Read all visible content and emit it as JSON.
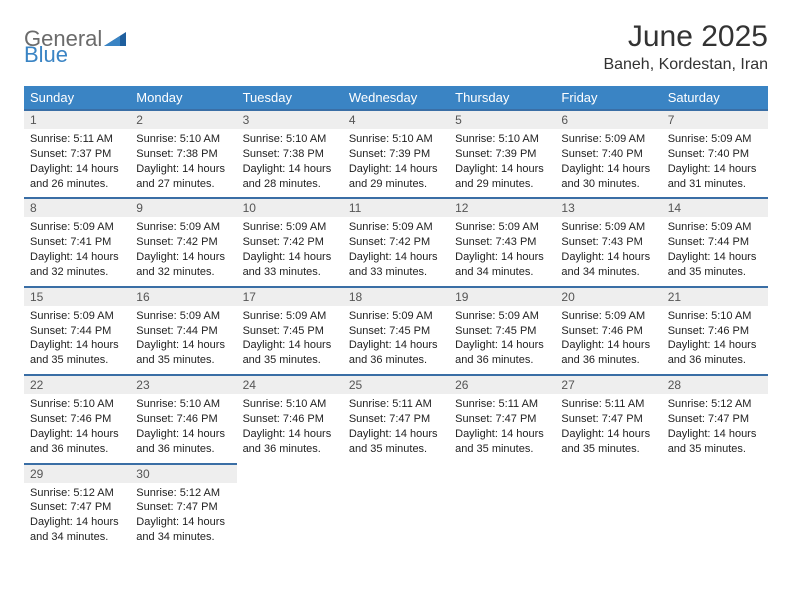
{
  "logo": {
    "text1": "General",
    "text2": "Blue"
  },
  "title": "June 2025",
  "location": "Baneh, Kordestan, Iran",
  "colors": {
    "header_bg": "#3a84c4",
    "header_text": "#ffffff",
    "daynum_bg": "#eeeeee",
    "daynum_border": "#3a6ea5",
    "body_text": "#222222",
    "title_text": "#333333",
    "logo_gray": "#6b6b6b",
    "logo_blue": "#3a84c4"
  },
  "typography": {
    "title_fontsize": 30,
    "location_fontsize": 16,
    "header_fontsize": 13,
    "daynum_fontsize": 12,
    "body_fontsize": 11
  },
  "weekdays": [
    "Sunday",
    "Monday",
    "Tuesday",
    "Wednesday",
    "Thursday",
    "Friday",
    "Saturday"
  ],
  "days": [
    {
      "n": 1,
      "sunrise": "5:11 AM",
      "sunset": "7:37 PM",
      "daylight": "14 hours and 26 minutes."
    },
    {
      "n": 2,
      "sunrise": "5:10 AM",
      "sunset": "7:38 PM",
      "daylight": "14 hours and 27 minutes."
    },
    {
      "n": 3,
      "sunrise": "5:10 AM",
      "sunset": "7:38 PM",
      "daylight": "14 hours and 28 minutes."
    },
    {
      "n": 4,
      "sunrise": "5:10 AM",
      "sunset": "7:39 PM",
      "daylight": "14 hours and 29 minutes."
    },
    {
      "n": 5,
      "sunrise": "5:10 AM",
      "sunset": "7:39 PM",
      "daylight": "14 hours and 29 minutes."
    },
    {
      "n": 6,
      "sunrise": "5:09 AM",
      "sunset": "7:40 PM",
      "daylight": "14 hours and 30 minutes."
    },
    {
      "n": 7,
      "sunrise": "5:09 AM",
      "sunset": "7:40 PM",
      "daylight": "14 hours and 31 minutes."
    },
    {
      "n": 8,
      "sunrise": "5:09 AM",
      "sunset": "7:41 PM",
      "daylight": "14 hours and 32 minutes."
    },
    {
      "n": 9,
      "sunrise": "5:09 AM",
      "sunset": "7:42 PM",
      "daylight": "14 hours and 32 minutes."
    },
    {
      "n": 10,
      "sunrise": "5:09 AM",
      "sunset": "7:42 PM",
      "daylight": "14 hours and 33 minutes."
    },
    {
      "n": 11,
      "sunrise": "5:09 AM",
      "sunset": "7:42 PM",
      "daylight": "14 hours and 33 minutes."
    },
    {
      "n": 12,
      "sunrise": "5:09 AM",
      "sunset": "7:43 PM",
      "daylight": "14 hours and 34 minutes."
    },
    {
      "n": 13,
      "sunrise": "5:09 AM",
      "sunset": "7:43 PM",
      "daylight": "14 hours and 34 minutes."
    },
    {
      "n": 14,
      "sunrise": "5:09 AM",
      "sunset": "7:44 PM",
      "daylight": "14 hours and 35 minutes."
    },
    {
      "n": 15,
      "sunrise": "5:09 AM",
      "sunset": "7:44 PM",
      "daylight": "14 hours and 35 minutes."
    },
    {
      "n": 16,
      "sunrise": "5:09 AM",
      "sunset": "7:44 PM",
      "daylight": "14 hours and 35 minutes."
    },
    {
      "n": 17,
      "sunrise": "5:09 AM",
      "sunset": "7:45 PM",
      "daylight": "14 hours and 35 minutes."
    },
    {
      "n": 18,
      "sunrise": "5:09 AM",
      "sunset": "7:45 PM",
      "daylight": "14 hours and 36 minutes."
    },
    {
      "n": 19,
      "sunrise": "5:09 AM",
      "sunset": "7:45 PM",
      "daylight": "14 hours and 36 minutes."
    },
    {
      "n": 20,
      "sunrise": "5:09 AM",
      "sunset": "7:46 PM",
      "daylight": "14 hours and 36 minutes."
    },
    {
      "n": 21,
      "sunrise": "5:10 AM",
      "sunset": "7:46 PM",
      "daylight": "14 hours and 36 minutes."
    },
    {
      "n": 22,
      "sunrise": "5:10 AM",
      "sunset": "7:46 PM",
      "daylight": "14 hours and 36 minutes."
    },
    {
      "n": 23,
      "sunrise": "5:10 AM",
      "sunset": "7:46 PM",
      "daylight": "14 hours and 36 minutes."
    },
    {
      "n": 24,
      "sunrise": "5:10 AM",
      "sunset": "7:46 PM",
      "daylight": "14 hours and 36 minutes."
    },
    {
      "n": 25,
      "sunrise": "5:11 AM",
      "sunset": "7:47 PM",
      "daylight": "14 hours and 35 minutes."
    },
    {
      "n": 26,
      "sunrise": "5:11 AM",
      "sunset": "7:47 PM",
      "daylight": "14 hours and 35 minutes."
    },
    {
      "n": 27,
      "sunrise": "5:11 AM",
      "sunset": "7:47 PM",
      "daylight": "14 hours and 35 minutes."
    },
    {
      "n": 28,
      "sunrise": "5:12 AM",
      "sunset": "7:47 PM",
      "daylight": "14 hours and 35 minutes."
    },
    {
      "n": 29,
      "sunrise": "5:12 AM",
      "sunset": "7:47 PM",
      "daylight": "14 hours and 34 minutes."
    },
    {
      "n": 30,
      "sunrise": "5:12 AM",
      "sunset": "7:47 PM",
      "daylight": "14 hours and 34 minutes."
    }
  ],
  "labels": {
    "sunrise": "Sunrise: ",
    "sunset": "Sunset: ",
    "daylight": "Daylight: "
  },
  "layout": {
    "first_weekday_index": 0,
    "weeks": 5,
    "cols": 7
  }
}
